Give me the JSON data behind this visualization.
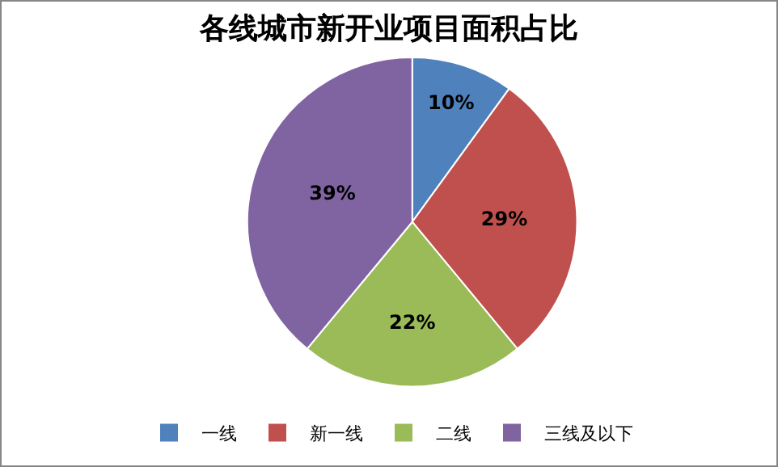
{
  "chart_data": {
    "type": "pie",
    "title": "各线城市新开业项目面积占比",
    "categories": [
      "一线",
      "新一线",
      "二线",
      "三线及以下"
    ],
    "values": [
      10,
      29,
      22,
      39
    ],
    "colors": [
      "#4f81bd",
      "#c0504d",
      "#9bbb59",
      "#8064a2"
    ],
    "value_labels": [
      "10%",
      "29%",
      "22%",
      "39%"
    ],
    "legend": "bottom"
  }
}
